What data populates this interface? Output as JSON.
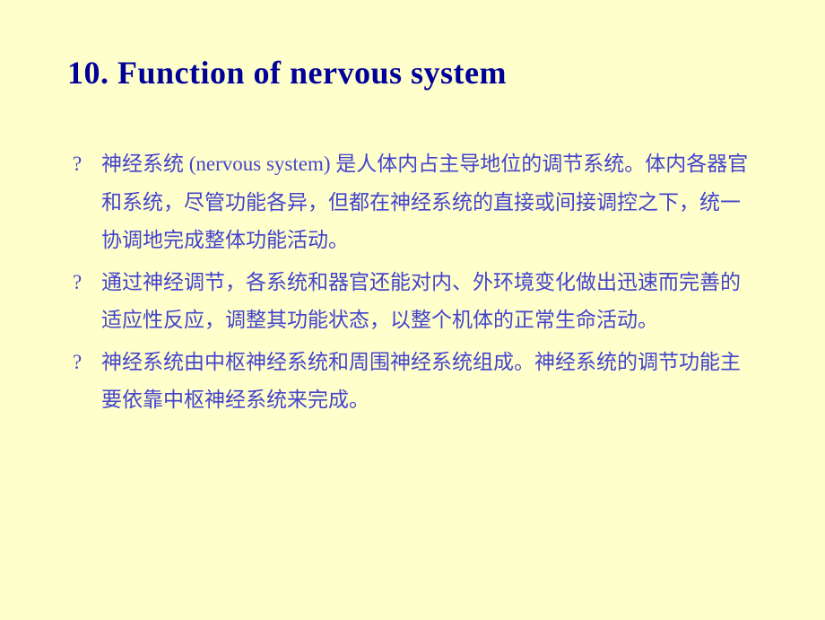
{
  "slide": {
    "title": "10. Function of nervous system",
    "title_color": "#000099",
    "title_fontsize": 36,
    "title_fontweight": "bold",
    "background_color": "#ffffcc",
    "bullet_marker": "?",
    "bullet_color": "#4444cc",
    "bullet_fontsize": 23,
    "bullet_lineheight": 1.85,
    "bullets": [
      "神经系统 (nervous system) 是人体内占主导地位的调节系统。体内各器官和系统，尽管功能各异，但都在神经系统的直接或间接调控之下，统一协调地完成整体功能活动。",
      "通过神经调节，各系统和器官还能对内、外环境变化做出迅速而完善的适应性反应，调整其功能状态，以整个机体的正常生命活动。",
      "神经系统由中枢神经系统和周围神经系统组成。神经系统的调节功能主要依靠中枢神经系统来完成。"
    ]
  }
}
